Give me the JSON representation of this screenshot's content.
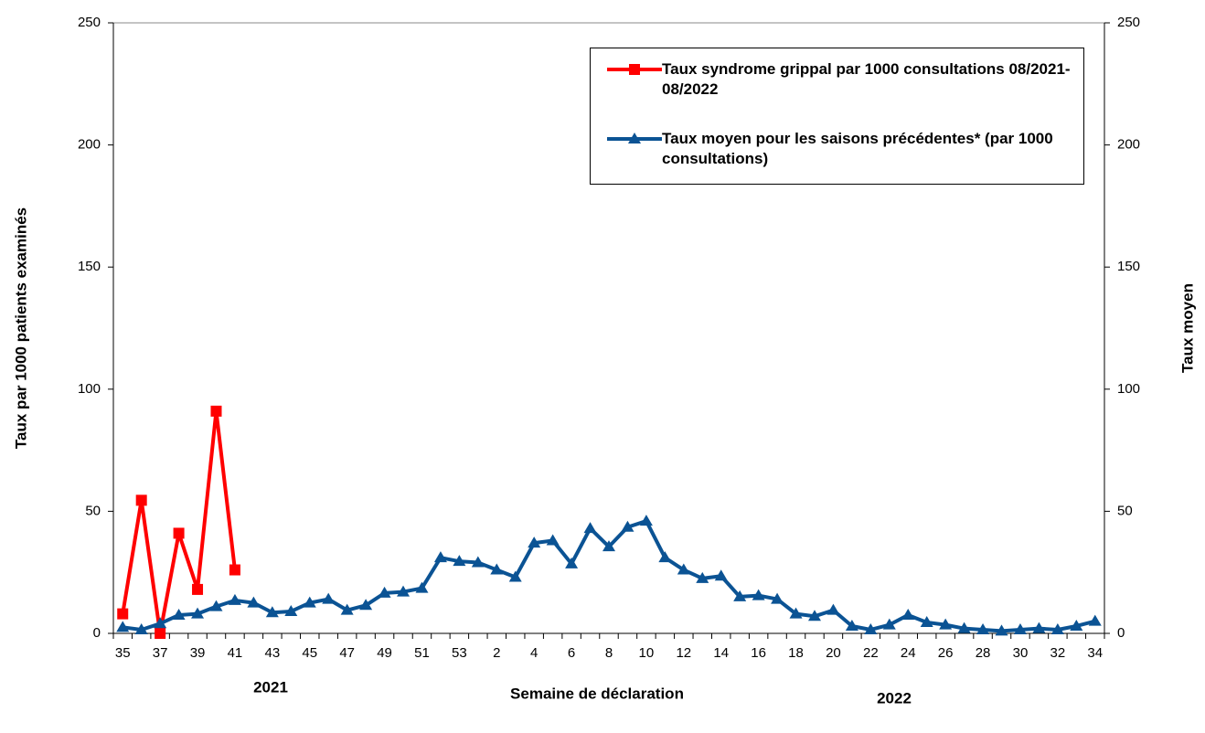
{
  "chart_data": {
    "type": "line",
    "y_label": "Taux par 1000 patients examinés",
    "y2_label": "Taux moyen",
    "x_label": "Semaine de déclaration",
    "annotations": [
      "2021",
      "2022"
    ],
    "categories": [
      "35",
      null,
      "37",
      null,
      "39",
      null,
      "41",
      null,
      "43",
      null,
      "45",
      null,
      "47",
      null,
      "49",
      null,
      "51",
      null,
      "53",
      null,
      "2",
      null,
      "4",
      null,
      "6",
      null,
      "8",
      null,
      "10",
      null,
      "12",
      null,
      "14",
      null,
      "16",
      null,
      "18",
      null,
      "20",
      null,
      "22",
      null,
      "24",
      null,
      "26",
      null,
      "28",
      null,
      "30",
      null,
      "32",
      null,
      "34"
    ],
    "series": [
      {
        "name": "Taux syndrome grippal par 1000 consultations 08/2021-08/2022",
        "color": "#ff0000",
        "marker": "square",
        "values": [
          8,
          54.5,
          0,
          41,
          18,
          91,
          26,
          null,
          null,
          null,
          null,
          null,
          null,
          null,
          null,
          null,
          null,
          null,
          null,
          null,
          null,
          null,
          null,
          null,
          null,
          null,
          null,
          null,
          null,
          null,
          null,
          null,
          null,
          null,
          null,
          null,
          null,
          null,
          null,
          null,
          null,
          null,
          null,
          null,
          null,
          null,
          null,
          null,
          null,
          null,
          null,
          null,
          null
        ]
      },
      {
        "name": "Taux moyen pour les saisons précédentes* (par 1000 consultations)",
        "color": "#0b5394",
        "marker": "triangle",
        "axis": "y2",
        "values": [
          2.5,
          1.5,
          4,
          7.5,
          8,
          11,
          13.5,
          12.5,
          8.5,
          9,
          12.5,
          14,
          9.5,
          11.5,
          16.5,
          17,
          18.5,
          31,
          29.5,
          29,
          26,
          23,
          37,
          38,
          28.5,
          43,
          35.5,
          43.5,
          46,
          31,
          26,
          22.5,
          23.5,
          15,
          15.5,
          14,
          8,
          7,
          9.5,
          3,
          1.5,
          3.5,
          7.5,
          4.5,
          3.5,
          2,
          1.5,
          1,
          1.5,
          2,
          1.5,
          3,
          5
        ]
      }
    ],
    "ylim": [
      0,
      250
    ],
    "yticks": [
      0,
      50,
      100,
      150,
      200,
      250
    ],
    "y2lim": [
      0,
      250
    ],
    "y2ticks": [
      0,
      50,
      100,
      150,
      200,
      250
    ],
    "grid": false,
    "legend": "upper right"
  }
}
